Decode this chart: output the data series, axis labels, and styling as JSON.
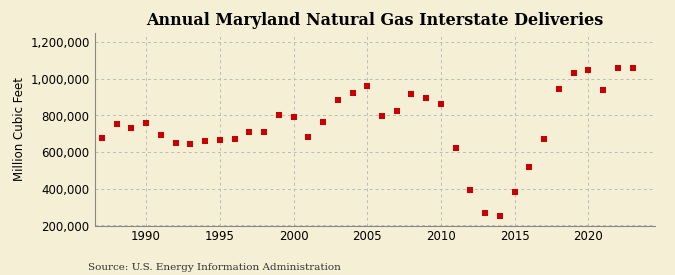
{
  "title": "Annual Maryland Natural Gas Interstate Deliveries",
  "ylabel": "Million Cubic Feet",
  "source": "Source: U.S. Energy Information Administration",
  "background_color": "#f5efd5",
  "marker_color": "#cc0000",
  "grid_color": "#bbbbbb",
  "years": [
    1987,
    1988,
    1989,
    1990,
    1991,
    1992,
    1993,
    1994,
    1995,
    1996,
    1997,
    1998,
    1999,
    2000,
    2001,
    2002,
    2003,
    2004,
    2005,
    2006,
    2007,
    2008,
    2009,
    2010,
    2011,
    2012,
    2013,
    2014,
    2015,
    2016,
    2017,
    2018,
    2019,
    2020,
    2021,
    2022,
    2023
  ],
  "values": [
    675000,
    755000,
    730000,
    760000,
    695000,
    650000,
    645000,
    660000,
    665000,
    670000,
    710000,
    710000,
    800000,
    790000,
    680000,
    765000,
    885000,
    920000,
    960000,
    795000,
    825000,
    915000,
    895000,
    860000,
    620000,
    395000,
    270000,
    250000,
    380000,
    520000,
    670000,
    945000,
    1030000,
    1050000,
    940000,
    1060000,
    1060000
  ],
  "xlim": [
    1986.5,
    2024.5
  ],
  "ylim": [
    200000,
    1250000
  ],
  "yticks": [
    200000,
    400000,
    600000,
    800000,
    1000000,
    1200000
  ],
  "xticks": [
    1990,
    1995,
    2000,
    2005,
    2010,
    2015,
    2020
  ],
  "title_fontsize": 11.5,
  "axis_fontsize": 8.5,
  "source_fontsize": 7.5,
  "marker_size": 15
}
